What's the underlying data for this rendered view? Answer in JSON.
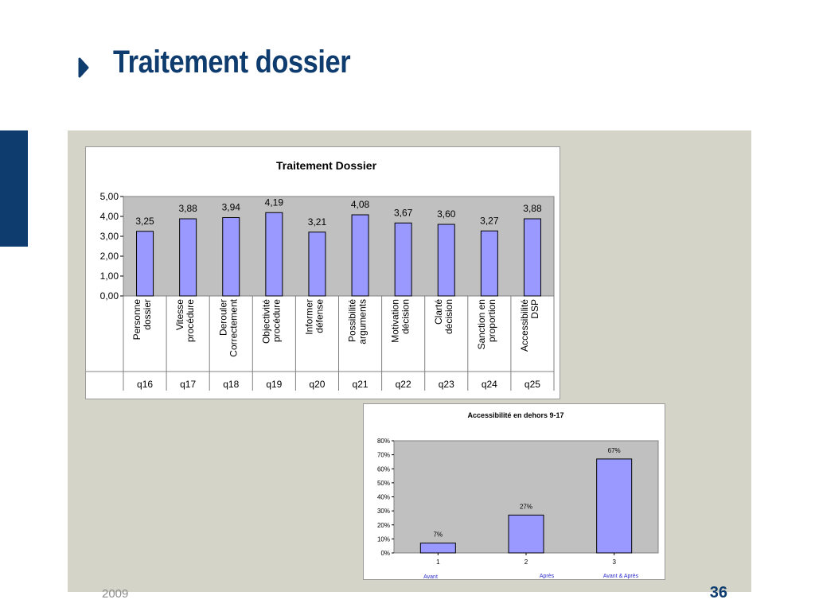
{
  "slide": {
    "title": "Traitement dossier",
    "footer_year": "2009",
    "page_number": "36"
  },
  "colors": {
    "title": "#0f3c6e",
    "accent_bar": "#0f3c6e",
    "panel_background": "#d4d4c8",
    "bar_fill": "#9999ff",
    "plot_area": "#c0c0c0",
    "footer_text": "#8c8c8c"
  },
  "icons": {
    "title_bullet": "triangle-right-bullet-icon"
  },
  "chart_data": [
    {
      "type": "bar",
      "title": "Traitement Dossier",
      "categories": [
        [
          "Personne",
          "dossier"
        ],
        [
          "Vitesse",
          "procédure"
        ],
        [
          "Derouler",
          "Correctement"
        ],
        [
          "Objectivité",
          "procédure"
        ],
        [
          "Informer",
          "défense"
        ],
        [
          "Possibilité",
          "arguments"
        ],
        [
          "Motivation",
          "décision"
        ],
        [
          "Clarté",
          "décision"
        ],
        [
          "Sanction en",
          "proportion"
        ],
        [
          "Accessibilité",
          "DSP"
        ]
      ],
      "codes": [
        "q16",
        "q17",
        "q18",
        "q19",
        "q20",
        "q21",
        "q22",
        "q23",
        "q24",
        "q25"
      ],
      "values": [
        3.25,
        3.88,
        3.94,
        4.19,
        3.21,
        4.08,
        3.67,
        3.6,
        3.27,
        3.88
      ],
      "data_labels": [
        "3,25",
        "3,88",
        "3,94",
        "4,19",
        "3,21",
        "4,08",
        "3,67",
        "3,60",
        "3,27",
        "3,88"
      ],
      "ylim": [
        0,
        5
      ],
      "yticks": [
        "0,00",
        "1,00",
        "2,00",
        "3,00",
        "4,00",
        "5,00"
      ],
      "xlabel": "",
      "ylabel": "",
      "grid": false,
      "legend": "none"
    },
    {
      "type": "bar",
      "title": "Accessibilité en dehors 9-17",
      "categories": [
        "1",
        "2",
        "3"
      ],
      "category_notes": [
        "Avant",
        "Après",
        "Avant & Après"
      ],
      "values": [
        7,
        27,
        67
      ],
      "data_labels": [
        "7%",
        "27%",
        "67%"
      ],
      "ylim": [
        0,
        80
      ],
      "yticks": [
        "0%",
        "10%",
        "20%",
        "30%",
        "40%",
        "50%",
        "60%",
        "70%",
        "80%"
      ],
      "xlabel": "",
      "ylabel": "",
      "grid": false,
      "legend": "none"
    }
  ]
}
